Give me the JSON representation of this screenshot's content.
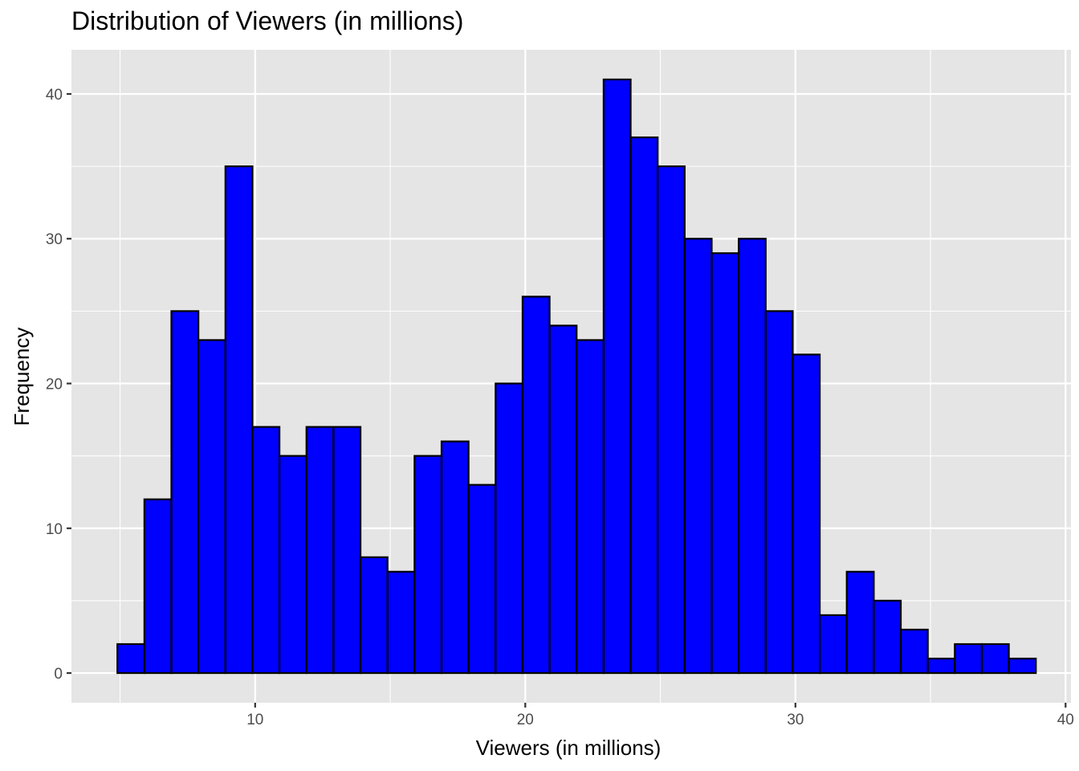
{
  "chart_data": {
    "type": "bar",
    "title": "Distribution of Viewers (in millions)",
    "xlabel": "Viewers (in millions)",
    "ylabel": "Frequency",
    "bin_width": 1,
    "bin_start": 4.9,
    "values": [
      2,
      12,
      25,
      23,
      35,
      17,
      15,
      17,
      17,
      8,
      7,
      15,
      16,
      13,
      20,
      26,
      24,
      23,
      41,
      37,
      35,
      30,
      29,
      30,
      25,
      22,
      4,
      7,
      5,
      3,
      1,
      2,
      2,
      1
    ],
    "xlim": [
      3.2,
      40.2
    ],
    "ylim": [
      -2.05,
      43.05
    ],
    "xticks": [
      10,
      20,
      30,
      40
    ],
    "yticks": [
      0,
      10,
      20,
      30,
      40
    ],
    "grid": true,
    "colors": {
      "panel": "#e5e5e5",
      "grid": "#ffffff",
      "bar_fill": "#0000ff",
      "bar_stroke": "#000000",
      "tick_text": "#4d4d4d"
    }
  }
}
